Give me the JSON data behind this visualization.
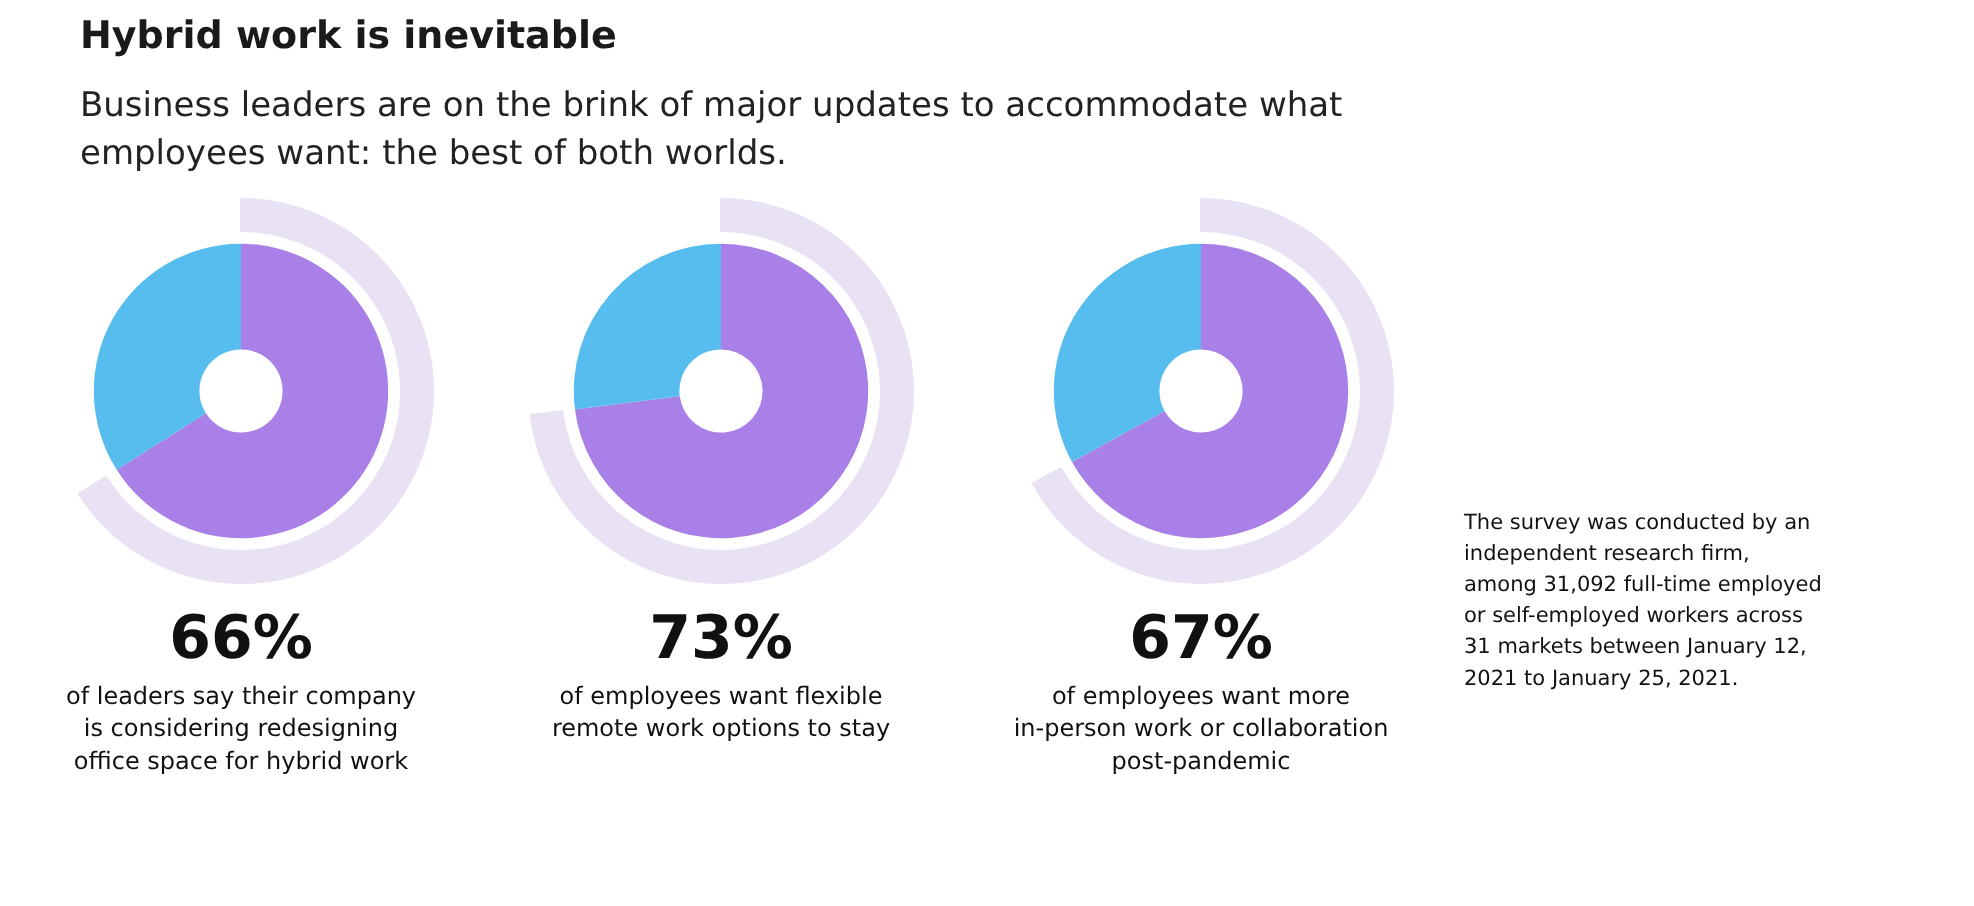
{
  "chart_data": [
    {
      "type": "donut",
      "title": "Hybrid work is inevitable",
      "subtitle": "Business leaders are on the brink of major updates to accommodate what employees want: the best of both worlds.",
      "categories": [
        null,
        null
      ],
      "values": [
        66,
        34
      ],
      "colors": [
        "#a97fe8",
        "#56bdee"
      ],
      "value_labels": [
        "66%",
        null
      ],
      "annotations": [
        "of leaders say their company\nis considering redesigning\noffice space for hybrid work"
      ]
    },
    {
      "type": "donut",
      "categories": [
        null,
        null
      ],
      "values": [
        73,
        27
      ],
      "colors": [
        "#a97fe8",
        "#56bdee"
      ],
      "value_labels": [
        "73%",
        null
      ],
      "annotations": [
        "of employees want flexible\nremote work options to stay"
      ]
    },
    {
      "type": "donut",
      "categories": [
        null,
        null
      ],
      "values": [
        67,
        33
      ],
      "colors": [
        "#a97fe8",
        "#56bdee"
      ],
      "value_labels": [
        "67%",
        null
      ],
      "annotations": [
        "of employees want more\nin-person work or collaboration\npost-pandemic"
      ]
    },
    {
      "type": "other",
      "annotations": [
        "The survey was conducted by an\nindependent research firm,\namong 31,092 full-time employed\nor self-employed workers across\n31 markets between January 12,\n2021 to January 25, 2021."
      ]
    }
  ]
}
